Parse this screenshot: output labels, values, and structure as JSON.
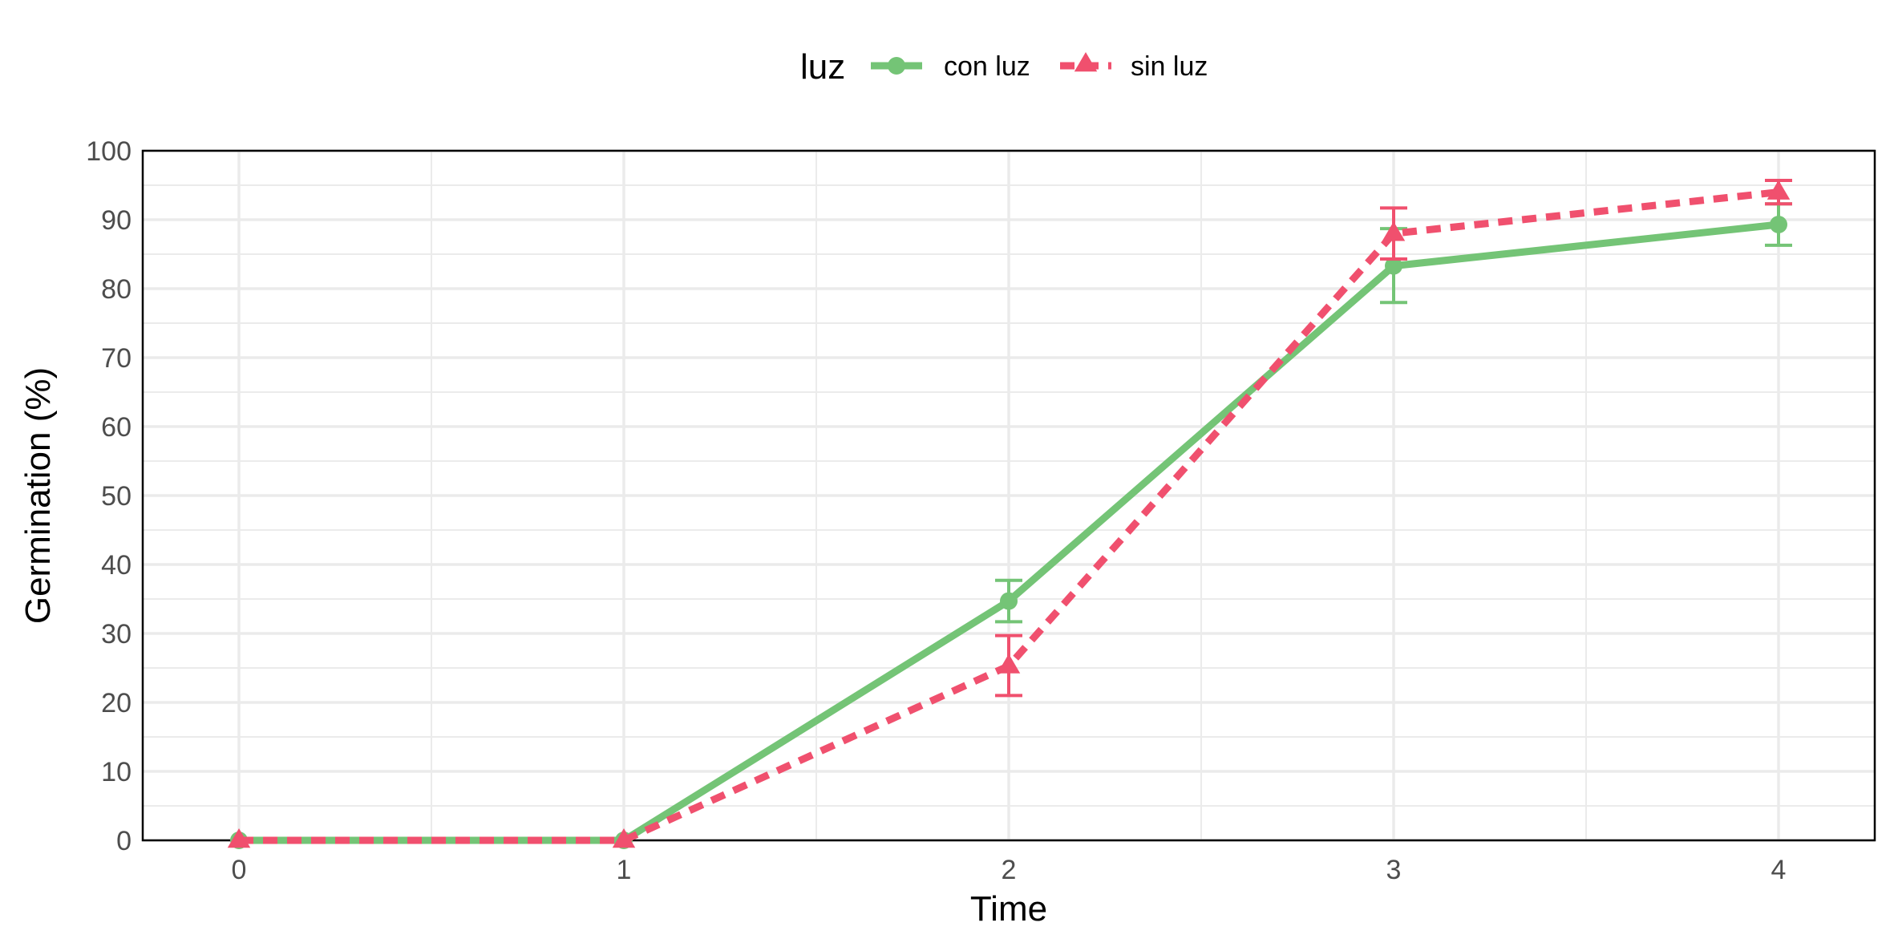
{
  "chart_data": {
    "type": "line",
    "title": "",
    "xlabel": "Time",
    "ylabel": "Germination (%)",
    "x": [
      0,
      1,
      2,
      3,
      4
    ],
    "x_ticks": [
      "0",
      "1",
      "2",
      "3",
      "4"
    ],
    "xlim": [
      -0.25,
      4.25
    ],
    "ylim": [
      0,
      100
    ],
    "y_ticks": [
      "0",
      "10",
      "20",
      "30",
      "40",
      "50",
      "60",
      "70",
      "80",
      "90",
      "100"
    ],
    "grid": true,
    "legend": {
      "title": "luz",
      "position": "top",
      "entries": [
        "con luz",
        "sin luz"
      ]
    },
    "series": [
      {
        "name": "con luz",
        "color": "#74c476",
        "line_style": "solid",
        "marker": "circle",
        "values": [
          0,
          0,
          34.7,
          83.3,
          89.3
        ],
        "error_low": [
          0,
          0,
          31.7,
          78.0,
          86.3
        ],
        "error_high": [
          0,
          0,
          37.7,
          88.7,
          92.3
        ]
      },
      {
        "name": "sin luz",
        "color": "#f0506e",
        "line_style": "dashed",
        "marker": "triangle",
        "values": [
          0,
          0,
          25.3,
          88.0,
          94.0
        ],
        "error_low": [
          0,
          0,
          21.0,
          84.3,
          92.3
        ],
        "error_high": [
          0,
          0,
          29.7,
          91.7,
          95.7
        ]
      }
    ]
  }
}
